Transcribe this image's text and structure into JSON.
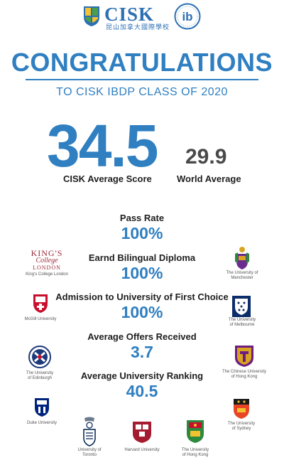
{
  "header": {
    "brand": "CISK",
    "brand_sub": "昆山加拿大國際學校",
    "ib_letters": "ib"
  },
  "title": "CONGRATULATIONS",
  "subtitle": "TO CISK IBDP CLASS OF 2020",
  "scores": {
    "cisk_value": "34.5",
    "cisk_label": "CISK Average Score",
    "world_value": "29.9",
    "world_label": "World Average"
  },
  "stats": [
    {
      "label": "Pass Rate",
      "value": "100%"
    },
    {
      "label": "Earnd Bilingual Diploma",
      "value": "100%"
    },
    {
      "label": "Admission to University of First Choice",
      "value": "100%"
    },
    {
      "label": "Average Offers Received",
      "value": "3.7"
    },
    {
      "label": "Average University Ranking",
      "value": "40.5"
    }
  ],
  "universities": {
    "kings": {
      "logo_line1": "KING'S",
      "logo_line2": "College",
      "logo_line3": "LONDON",
      "label": "King's College London"
    },
    "manchester": {
      "label1": "The University of",
      "label2": "Manchester"
    },
    "mcgill": {
      "label": "McGill   University"
    },
    "melbourne": {
      "label1": "The University",
      "label2": "of Melbourne"
    },
    "edinburgh": {
      "label1": "The University",
      "label2": "of Edinburgh"
    },
    "cuhk": {
      "label1": "The Chinese University",
      "label2": "of Hong Kong"
    },
    "duke": {
      "label": "Duke University"
    },
    "sydney": {
      "label1": "The University",
      "label2": "of Sydney"
    },
    "toronto": {
      "label1": "University of",
      "label2": "Toronto"
    },
    "harvard": {
      "label": "Harvard   University"
    },
    "hku": {
      "label1": "The University",
      "label2": "of Hong Kong"
    }
  },
  "colors": {
    "accent": "#2f7fc1",
    "text": "#1e1e1e",
    "world_text": "#4a4a4a"
  }
}
